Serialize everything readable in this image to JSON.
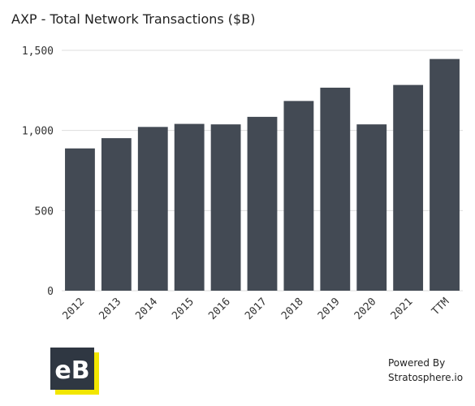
{
  "chart_data": {
    "type": "bar",
    "title": "AXP - Total Network Transactions ($B)",
    "xlabel": "",
    "ylabel": "",
    "categories": [
      "2012",
      "2013",
      "2014",
      "2015",
      "2016",
      "2017",
      "2018",
      "2019",
      "2020",
      "2021",
      "TTM"
    ],
    "values": [
      888,
      952,
      1022,
      1041,
      1038,
      1085,
      1184,
      1267,
      1038,
      1284,
      1446
    ],
    "ylim": [
      0,
      1500
    ],
    "yticks": [
      0,
      500,
      1000,
      1500
    ],
    "ytick_labels": [
      "0",
      "500",
      "1,000",
      "1,500"
    ],
    "grid": true,
    "bar_color": "#434a54",
    "grid_color": "#dddddd"
  },
  "branding": {
    "powered_line1": "Powered By",
    "powered_line2": "Stratosphere.io",
    "logo_text": "eB",
    "logo_bg": "#2f3742",
    "logo_accent": "#f2e600"
  }
}
